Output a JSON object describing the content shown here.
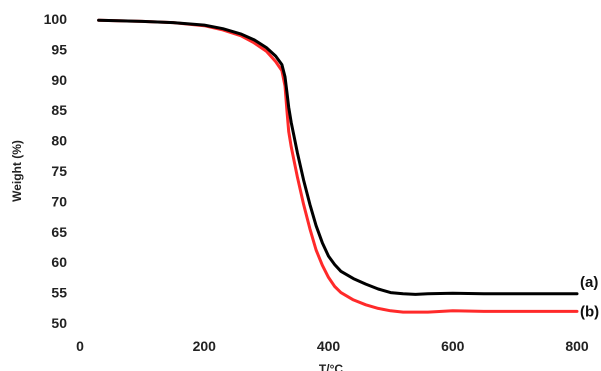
{
  "chart_data": {
    "type": "line",
    "xlabel": "T/°C",
    "ylabel": "Weight (%)",
    "xlim": [
      0,
      800
    ],
    "ylim": [
      50,
      100
    ],
    "xticks": [
      0,
      200,
      400,
      600,
      800
    ],
    "yticks": [
      50,
      55,
      60,
      65,
      70,
      75,
      80,
      85,
      90,
      95,
      100
    ],
    "grid": false,
    "legend": "none",
    "series": [
      {
        "name": "(a)",
        "color": "#000000",
        "x": [
          30,
          100,
          150,
          200,
          230,
          260,
          280,
          300,
          315,
          325,
          330,
          333,
          336,
          340,
          345,
          350,
          360,
          370,
          380,
          390,
          400,
          410,
          420,
          440,
          460,
          480,
          500,
          520,
          540,
          560,
          600,
          650,
          700,
          750,
          800
        ],
        "y": [
          99.8,
          99.6,
          99.4,
          99.0,
          98.4,
          97.5,
          96.6,
          95.3,
          93.9,
          92.5,
          90.5,
          88.0,
          85.5,
          83.0,
          80.5,
          78.0,
          73.5,
          69.5,
          66.0,
          63.2,
          61.0,
          59.6,
          58.5,
          57.3,
          56.4,
          55.6,
          55.0,
          54.8,
          54.7,
          54.8,
          54.9,
          54.8,
          54.8,
          54.8,
          54.8
        ]
      },
      {
        "name": "(b)",
        "color": "#ff2a2a",
        "x": [
          30,
          100,
          150,
          200,
          230,
          260,
          280,
          300,
          315,
          325,
          330,
          333,
          336,
          340,
          345,
          350,
          360,
          370,
          380,
          390,
          400,
          410,
          420,
          440,
          460,
          480,
          500,
          520,
          540,
          560,
          600,
          650,
          700,
          750,
          800
        ],
        "y": [
          99.8,
          99.6,
          99.4,
          98.9,
          98.2,
          97.2,
          96.1,
          94.7,
          93.0,
          91.5,
          89.0,
          85.0,
          81.5,
          79.0,
          76.5,
          74.0,
          69.5,
          65.5,
          62.0,
          59.5,
          57.5,
          56.0,
          55.0,
          53.8,
          53.0,
          52.4,
          52.0,
          51.8,
          51.8,
          51.8,
          52.0,
          51.9,
          51.9,
          51.9,
          51.9
        ]
      }
    ]
  }
}
